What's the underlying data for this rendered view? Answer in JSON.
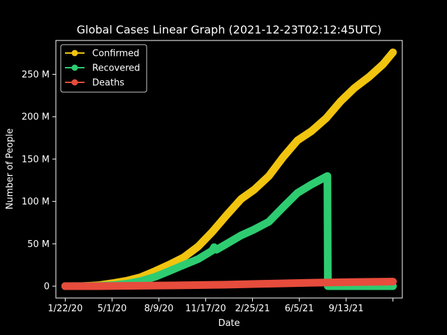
{
  "chart_data": {
    "type": "line",
    "title": "Global Cases Linear Graph (2021-12-23T02:12:45UTC)",
    "xlabel": "Date",
    "ylabel": "Number of People",
    "xlim": [
      "2020-01-02",
      "2022-01-11"
    ],
    "ylim": [
      -14000000,
      290000000
    ],
    "x_ticks": [
      {
        "date": "2020-01-22",
        "label": "1/22/20"
      },
      {
        "date": "2020-05-01",
        "label": "5/1/20"
      },
      {
        "date": "2020-08-09",
        "label": "8/9/20"
      },
      {
        "date": "2020-11-17",
        "label": "11/17/20"
      },
      {
        "date": "2021-02-25",
        "label": "2/25/21"
      },
      {
        "date": "2021-06-05",
        "label": "6/5/21"
      },
      {
        "date": "2021-09-13",
        "label": "9/13/21"
      },
      {
        "date": "2021-12-22",
        "label": ""
      }
    ],
    "y_ticks": [
      {
        "value": 0,
        "label": "0"
      },
      {
        "value": 50000000,
        "label": "50 M"
      },
      {
        "value": 100000000,
        "label": "100 M"
      },
      {
        "value": 150000000,
        "label": "150 M"
      },
      {
        "value": 200000000,
        "label": "200 M"
      },
      {
        "value": 250000000,
        "label": "250 M"
      }
    ],
    "legend_position": "top-left",
    "grid": false,
    "series": [
      {
        "name": "Confirmed",
        "color": "#f1c40f",
        "points": [
          [
            "2020-01-22",
            0
          ],
          [
            "2020-03-01",
            100000
          ],
          [
            "2020-04-01",
            1000000
          ],
          [
            "2020-05-01",
            3400000
          ],
          [
            "2020-06-01",
            6300000
          ],
          [
            "2020-07-01",
            10600000
          ],
          [
            "2020-08-01",
            17800000
          ],
          [
            "2020-09-01",
            25600000
          ],
          [
            "2020-10-01",
            34000000
          ],
          [
            "2020-11-01",
            46800000
          ],
          [
            "2020-12-01",
            64000000
          ],
          [
            "2021-01-01",
            84000000
          ],
          [
            "2021-02-01",
            103000000
          ],
          [
            "2021-03-01",
            114000000
          ],
          [
            "2021-04-01",
            130000000
          ],
          [
            "2021-05-01",
            152000000
          ],
          [
            "2021-06-01",
            172000000
          ],
          [
            "2021-07-01",
            183000000
          ],
          [
            "2021-08-01",
            198000000
          ],
          [
            "2021-09-01",
            218000000
          ],
          [
            "2021-10-01",
            234000000
          ],
          [
            "2021-11-01",
            247000000
          ],
          [
            "2021-12-01",
            262000000
          ],
          [
            "2021-12-22",
            276000000
          ]
        ]
      },
      {
        "name": "Recovered",
        "color": "#2ecc71",
        "points": [
          [
            "2020-01-22",
            0
          ],
          [
            "2020-03-01",
            60000
          ],
          [
            "2020-04-01",
            300000
          ],
          [
            "2020-05-01",
            1100000
          ],
          [
            "2020-06-01",
            2800000
          ],
          [
            "2020-07-01",
            6000000
          ],
          [
            "2020-08-01",
            11000000
          ],
          [
            "2020-09-01",
            18000000
          ],
          [
            "2020-10-01",
            25000000
          ],
          [
            "2020-11-01",
            32000000
          ],
          [
            "2020-12-01",
            42000000
          ],
          [
            "2020-12-05",
            46000000
          ],
          [
            "2020-12-10",
            43000000
          ],
          [
            "2021-01-01",
            50000000
          ],
          [
            "2021-02-01",
            60000000
          ],
          [
            "2021-03-01",
            67000000
          ],
          [
            "2021-04-01",
            76000000
          ],
          [
            "2021-05-01",
            93000000
          ],
          [
            "2021-06-01",
            110000000
          ],
          [
            "2021-07-01",
            120000000
          ],
          [
            "2021-08-04",
            130000000
          ],
          [
            "2021-08-05",
            0
          ],
          [
            "2021-12-22",
            0
          ]
        ]
      },
      {
        "name": "Deaths",
        "color": "#e74c3c",
        "points": [
          [
            "2020-01-22",
            0
          ],
          [
            "2020-04-01",
            50000
          ],
          [
            "2020-07-01",
            500000
          ],
          [
            "2020-10-01",
            1000000
          ],
          [
            "2021-01-01",
            1800000
          ],
          [
            "2021-04-01",
            2900000
          ],
          [
            "2021-07-01",
            4000000
          ],
          [
            "2021-10-01",
            4800000
          ],
          [
            "2021-12-22",
            5400000
          ]
        ]
      }
    ]
  }
}
